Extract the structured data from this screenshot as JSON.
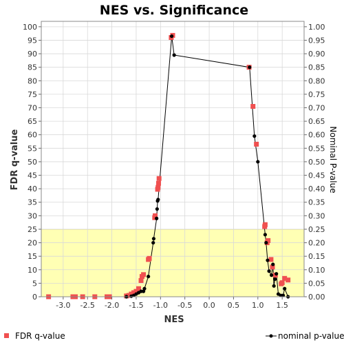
{
  "chart_data": {
    "type": "scatter",
    "title": "NES vs. Significance",
    "xlabel": "NES",
    "ylabel_left": "FDR q-value",
    "ylabel_right": "Nominal P-value",
    "xlim": [
      -3.45,
      1.95
    ],
    "ylim_left": [
      0,
      102
    ],
    "ylim_right": [
      0,
      1.02
    ],
    "x_ticks": [
      -3.0,
      -2.5,
      -2.0,
      -1.5,
      -1.0,
      -0.5,
      0.0,
      0.5,
      1.0,
      1.5
    ],
    "x_tick_labels": [
      "-3.0",
      "-2.5",
      "-2.0",
      "-1.5",
      "-1.0",
      "-0.5",
      "0.0",
      "0.5",
      "1.0",
      "1.5"
    ],
    "y_left_ticks": [
      0,
      5,
      10,
      15,
      20,
      25,
      30,
      35,
      40,
      45,
      50,
      55,
      60,
      65,
      70,
      75,
      80,
      85,
      90,
      95,
      100
    ],
    "y_left_tick_labels": [
      "0",
      "5",
      "10",
      "15",
      "20",
      "25",
      "30",
      "35",
      "40",
      "45",
      "50",
      "55",
      "60",
      "65",
      "70",
      "75",
      "80",
      "85",
      "90",
      "95",
      "100"
    ],
    "y_right_ticks": [
      0,
      0.05,
      0.1,
      0.15,
      0.2,
      0.25,
      0.3,
      0.35,
      0.4,
      0.45,
      0.5,
      0.55,
      0.6,
      0.65,
      0.7,
      0.75,
      0.8,
      0.85,
      0.9,
      0.95,
      1.0
    ],
    "y_right_tick_labels": [
      "0.00",
      "0.05",
      "0.10",
      "0.15",
      "0.20",
      "0.25",
      "0.30",
      "0.35",
      "0.40",
      "0.45",
      "0.50",
      "0.55",
      "0.60",
      "0.65",
      "0.70",
      "0.75",
      "0.80",
      "0.85",
      "0.90",
      "0.95",
      "1.00"
    ],
    "grid": true,
    "highlight_region": {
      "y_min": 0,
      "y_max": 25,
      "axis": "left",
      "color": "#ffffb4"
    },
    "legend_position": "bottom",
    "series": [
      {
        "name": "FDR q-value",
        "axis": "left",
        "style": "square-markers",
        "color": "#f05050",
        "points": [
          {
            "x": -3.3,
            "y": 0
          },
          {
            "x": -2.8,
            "y": 0
          },
          {
            "x": -2.75,
            "y": 0
          },
          {
            "x": -2.6,
            "y": 0
          },
          {
            "x": -2.35,
            "y": 0
          },
          {
            "x": -2.1,
            "y": 0
          },
          {
            "x": -2.05,
            "y": 0
          },
          {
            "x": -1.7,
            "y": 0.3
          },
          {
            "x": -1.65,
            "y": 0.5
          },
          {
            "x": -1.6,
            "y": 1.0
          },
          {
            "x": -1.55,
            "y": 1.5
          },
          {
            "x": -1.5,
            "y": 2.0
          },
          {
            "x": -1.45,
            "y": 3.0
          },
          {
            "x": -1.4,
            "y": 6.0
          },
          {
            "x": -1.38,
            "y": 7.5
          },
          {
            "x": -1.35,
            "y": 8.2
          },
          {
            "x": -1.25,
            "y": 13.8
          },
          {
            "x": -1.23,
            "y": 14.2
          },
          {
            "x": -1.12,
            "y": 29.3
          },
          {
            "x": -1.11,
            "y": 30.0
          },
          {
            "x": -1.06,
            "y": 39.8
          },
          {
            "x": -1.05,
            "y": 40.5
          },
          {
            "x": -1.04,
            "y": 42.0
          },
          {
            "x": -1.03,
            "y": 43.8
          },
          {
            "x": -0.78,
            "y": 96.0
          },
          {
            "x": -0.75,
            "y": 96.8
          },
          {
            "x": 0.82,
            "y": 85.0
          },
          {
            "x": 0.9,
            "y": 70.5
          },
          {
            "x": 0.97,
            "y": 56.5
          },
          {
            "x": 1.14,
            "y": 26.0
          },
          {
            "x": 1.15,
            "y": 26.7
          },
          {
            "x": 1.19,
            "y": 20.0
          },
          {
            "x": 1.21,
            "y": 20.8
          },
          {
            "x": 1.27,
            "y": 13.8
          },
          {
            "x": 1.3,
            "y": 11.0
          },
          {
            "x": 1.36,
            "y": 8.0
          },
          {
            "x": 1.48,
            "y": 4.8
          },
          {
            "x": 1.5,
            "y": 5.2
          },
          {
            "x": 1.55,
            "y": 6.8
          },
          {
            "x": 1.62,
            "y": 6.2
          }
        ]
      },
      {
        "name": "nominal p-value",
        "axis": "right",
        "style": "line-with-dots",
        "color": "#000000",
        "points": [
          {
            "x": -1.7,
            "y": 0.0
          },
          {
            "x": -1.6,
            "y": 0.002
          },
          {
            "x": -1.55,
            "y": 0.005
          },
          {
            "x": -1.5,
            "y": 0.01
          },
          {
            "x": -1.45,
            "y": 0.015
          },
          {
            "x": -1.4,
            "y": 0.02
          },
          {
            "x": -1.35,
            "y": 0.02
          },
          {
            "x": -1.33,
            "y": 0.03
          },
          {
            "x": -1.25,
            "y": 0.075
          },
          {
            "x": -1.15,
            "y": 0.2
          },
          {
            "x": -1.14,
            "y": 0.215
          },
          {
            "x": -1.08,
            "y": 0.29
          },
          {
            "x": -1.07,
            "y": 0.325
          },
          {
            "x": -1.06,
            "y": 0.355
          },
          {
            "x": -1.05,
            "y": 0.36
          },
          {
            "x": -0.77,
            "y": 0.965
          },
          {
            "x": -0.72,
            "y": 0.895
          },
          {
            "x": 0.83,
            "y": 0.85
          },
          {
            "x": 0.93,
            "y": 0.595
          },
          {
            "x": 1.0,
            "y": 0.5
          },
          {
            "x": 1.15,
            "y": 0.23
          },
          {
            "x": 1.17,
            "y": 0.2
          },
          {
            "x": 1.2,
            "y": 0.135
          },
          {
            "x": 1.23,
            "y": 0.095
          },
          {
            "x": 1.28,
            "y": 0.08
          },
          {
            "x": 1.31,
            "y": 0.12
          },
          {
            "x": 1.33,
            "y": 0.04
          },
          {
            "x": 1.35,
            "y": 0.065
          },
          {
            "x": 1.38,
            "y": 0.085
          },
          {
            "x": 1.42,
            "y": 0.01
          },
          {
            "x": 1.47,
            "y": 0.005
          },
          {
            "x": 1.52,
            "y": 0.005
          },
          {
            "x": 1.55,
            "y": 0.03
          },
          {
            "x": 1.62,
            "y": 0.0
          }
        ]
      }
    ]
  }
}
